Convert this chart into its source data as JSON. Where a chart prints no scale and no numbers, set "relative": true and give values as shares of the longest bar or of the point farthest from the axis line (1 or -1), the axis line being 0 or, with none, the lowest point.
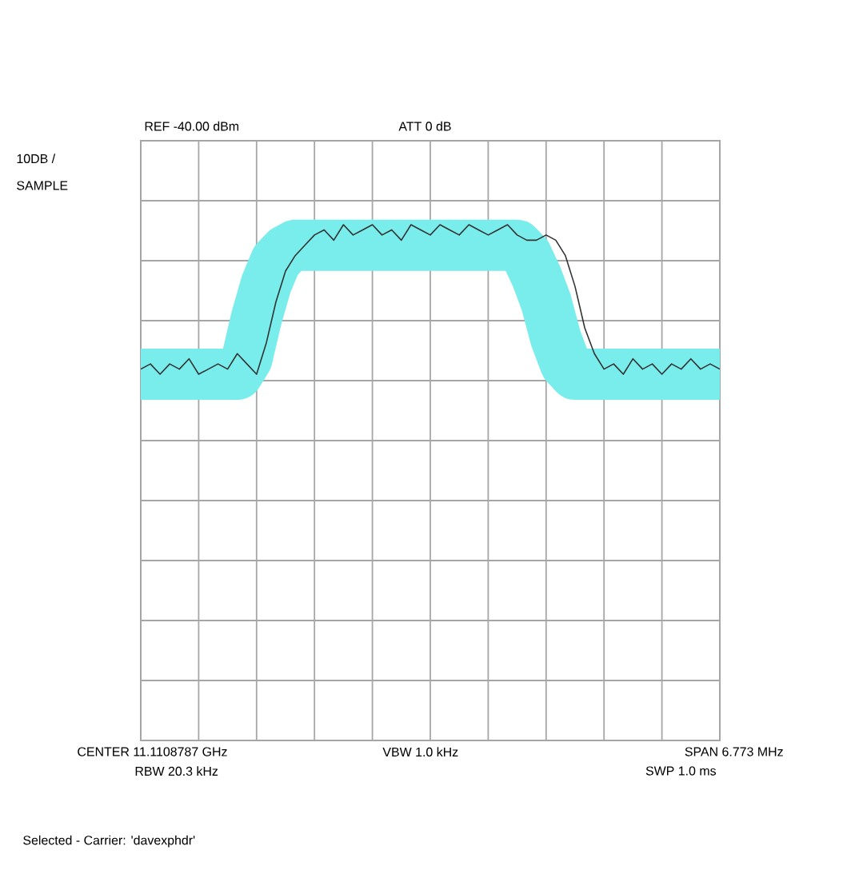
{
  "chart_data": {
    "type": "line",
    "relative": true,
    "grid": true,
    "tick_labels": false,
    "categories": [
      null,
      null,
      null,
      null,
      null,
      null,
      null,
      null,
      null,
      null,
      null,
      null,
      null,
      null,
      null,
      null,
      null,
      null,
      null,
      null,
      null,
      null,
      null,
      null,
      null,
      null,
      null,
      null,
      null,
      null,
      null,
      null,
      null,
      null,
      null,
      null,
      null,
      null,
      null,
      null,
      null,
      null,
      null,
      null,
      null,
      null,
      null,
      null,
      null,
      null,
      null,
      null,
      null,
      null,
      null,
      null,
      null,
      null,
      null,
      null,
      null
    ],
    "series": [
      {
        "color": "#79ecec",
        "values": [
          0.71,
          0.71,
          0.71,
          0.71,
          0.71,
          0.71,
          0.71,
          0.71,
          0.71,
          0.71,
          0.71,
          0.74,
          0.82,
          0.885,
          0.93,
          0.95,
          0.96,
          0.96,
          0.96,
          0.96,
          0.96,
          0.96,
          0.96,
          0.96,
          0.96,
          0.96,
          0.96,
          0.96,
          0.96,
          0.96,
          0.96,
          0.96,
          0.96,
          0.96,
          0.96,
          0.96,
          0.96,
          0.96,
          0.96,
          0.96,
          0.94,
          0.9,
          0.85,
          0.78,
          0.73,
          0.71,
          0.71,
          0.71,
          0.71,
          0.71,
          0.71,
          0.71,
          0.71,
          0.71,
          0.71,
          0.71,
          0.71,
          0.71,
          0.71,
          0.71,
          0.71
        ]
      },
      {
        "color": "#333333",
        "values": [
          0.72,
          0.73,
          0.71,
          0.73,
          0.72,
          0.74,
          0.71,
          0.72,
          0.73,
          0.72,
          0.75,
          0.73,
          0.71,
          0.77,
          0.85,
          0.91,
          0.94,
          0.96,
          0.98,
          0.99,
          0.97,
          1,
          0.98,
          0.99,
          1,
          0.98,
          0.99,
          0.97,
          1,
          0.99,
          0.98,
          1,
          0.99,
          0.98,
          1,
          0.99,
          0.98,
          0.99,
          1,
          0.98,
          0.97,
          0.97,
          0.98,
          0.97,
          0.94,
          0.88,
          0.8,
          0.75,
          0.72,
          0.73,
          0.71,
          0.74,
          0.72,
          0.73,
          0.71,
          0.73,
          0.72,
          0.74,
          0.72,
          0.73,
          0.72
        ]
      }
    ],
    "annotations": [
      "REF -40.00 dBm",
      "ATT 0 dB",
      "10DB /",
      "SAMPLE",
      "CENTER 11.1108787 GHz",
      "RBW 20.3 kHz",
      "VBW 1.0 kHz",
      "SPAN 6.773 MHz",
      "SWP 1.0 ms",
      "Selected - Carrier: 'davexphdr'"
    ]
  }
}
